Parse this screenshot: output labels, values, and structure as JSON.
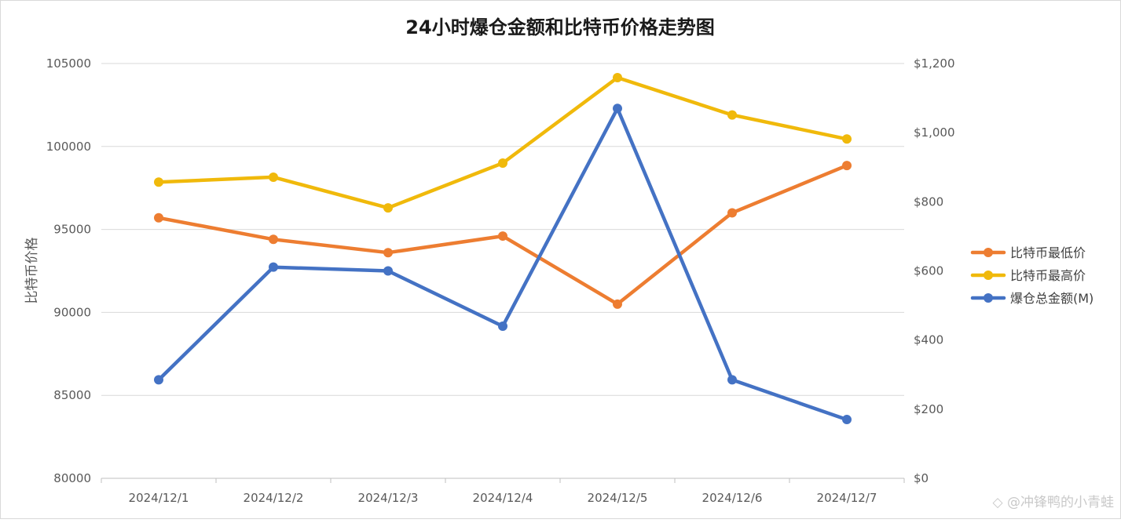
{
  "chart_data": {
    "type": "line",
    "title": "24小时爆仓金额和比特币价格走势图",
    "ylabel": "比特币价格",
    "y2label": "",
    "categories": [
      "2024/12/1",
      "2024/12/2",
      "2024/12/3",
      "2024/12/4",
      "2024/12/5",
      "2024/12/6",
      "2024/12/7"
    ],
    "ylim": [
      80000,
      105000
    ],
    "y_ticks": [
      "105000",
      "100000",
      "95000",
      "90000",
      "85000",
      "80000"
    ],
    "y2lim": [
      0,
      1200
    ],
    "y2_ticks": [
      "$1,200",
      "$1,000",
      "$800",
      "$600",
      "$400",
      "$200",
      "$0"
    ],
    "grid": true,
    "legend_position": "right",
    "series": [
      {
        "name": "比特币最低价",
        "axis": "left",
        "color": "#ED7D31",
        "values": [
          95700,
          94400,
          93600,
          94600,
          90500,
          96000,
          98850
        ]
      },
      {
        "name": "比特币最高价",
        "axis": "left",
        "color": "#F0B90B",
        "values": [
          97850,
          98150,
          96300,
          99000,
          104150,
          101900,
          100450
        ]
      },
      {
        "name": "爆仓总金额(M)",
        "axis": "right",
        "color": "#4472C4",
        "values": [
          285,
          611,
          600,
          440,
          1070,
          285,
          170
        ]
      }
    ]
  },
  "watermark": "◇ @冲锋鸭的小青蛙"
}
